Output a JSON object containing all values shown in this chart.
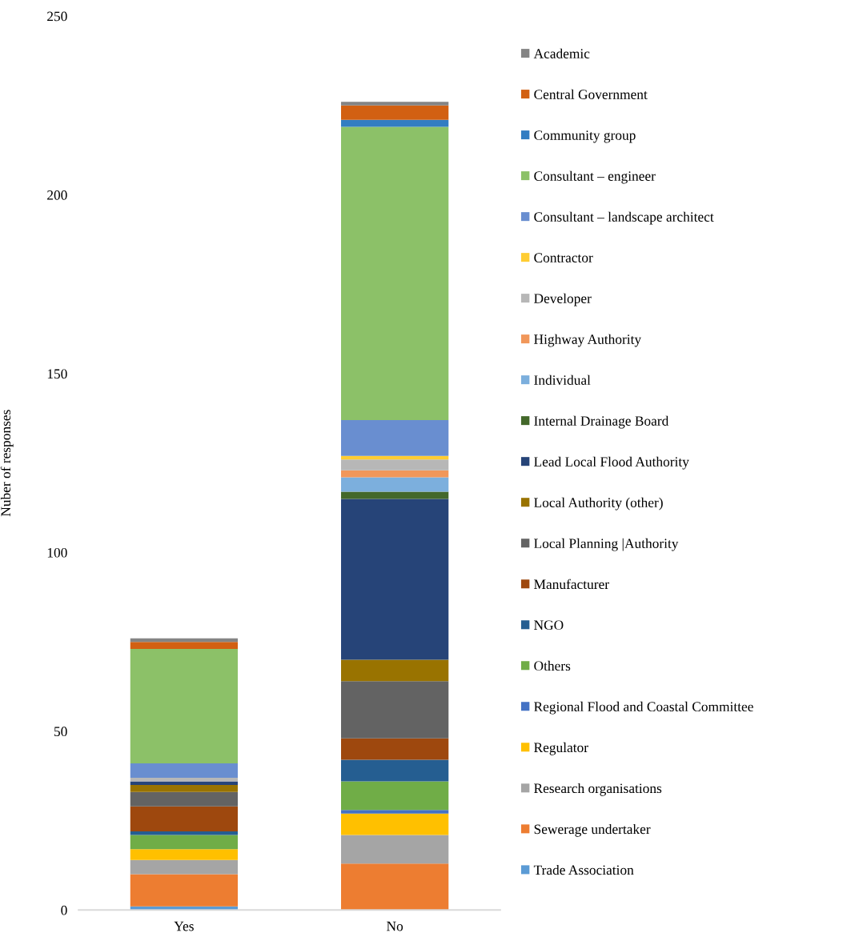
{
  "chart_data": {
    "type": "bar",
    "stacked": true,
    "ylabel": "Nuber of responses",
    "categories": [
      "Yes",
      "No"
    ],
    "ylim": [
      0,
      250
    ],
    "yticks": [
      0,
      50,
      100,
      150,
      200,
      250
    ],
    "grid": false,
    "legend": "right",
    "series": [
      {
        "name": "Trade Association",
        "color": "#5b9bd5",
        "values": [
          1,
          0
        ]
      },
      {
        "name": "Sewerage undertaker",
        "color": "#ed7d31",
        "values": [
          9,
          13
        ]
      },
      {
        "name": "Research organisations",
        "color": "#a5a5a5",
        "values": [
          4,
          8
        ]
      },
      {
        "name": "Regulator",
        "color": "#ffc000",
        "values": [
          3,
          6
        ]
      },
      {
        "name": "Regional Flood and Coastal Committee",
        "color": "#4472c4",
        "values": [
          0,
          1
        ]
      },
      {
        "name": "Others",
        "color": "#70ad47",
        "values": [
          4,
          8
        ]
      },
      {
        "name": "NGO",
        "color": "#255e91",
        "values": [
          1,
          6
        ]
      },
      {
        "name": "Manufacturer",
        "color": "#9e480e",
        "values": [
          7,
          6
        ]
      },
      {
        "name": "Local Planning |Authority",
        "color": "#636363",
        "values": [
          4,
          16
        ]
      },
      {
        "name": "Local Authority (other)",
        "color": "#997300",
        "values": [
          2,
          6
        ]
      },
      {
        "name": "Lead Local Flood Authority",
        "color": "#264478",
        "values": [
          1,
          45
        ]
      },
      {
        "name": "Internal Drainage Board",
        "color": "#43682b",
        "values": [
          0,
          2
        ]
      },
      {
        "name": "Individual",
        "color": "#7cafdd",
        "values": [
          0,
          4
        ]
      },
      {
        "name": "Highway Authority",
        "color": "#f1975a",
        "values": [
          0,
          2
        ]
      },
      {
        "name": "Developer",
        "color": "#b7b7b7",
        "values": [
          1,
          3
        ]
      },
      {
        "name": "Contractor",
        "color": "#ffcd33",
        "values": [
          0,
          1
        ]
      },
      {
        "name": "Consultant – landscape architect",
        "color": "#698ed0",
        "values": [
          4,
          10
        ]
      },
      {
        "name": "Consultant – engineer",
        "color": "#8cc168",
        "values": [
          32,
          82
        ]
      },
      {
        "name": "Community group",
        "color": "#327dc2",
        "values": [
          0,
          2
        ]
      },
      {
        "name": "Central Government",
        "color": "#d26012",
        "values": [
          2,
          4
        ]
      },
      {
        "name": "Academic",
        "color": "#848484",
        "values": [
          1,
          1
        ]
      }
    ]
  }
}
